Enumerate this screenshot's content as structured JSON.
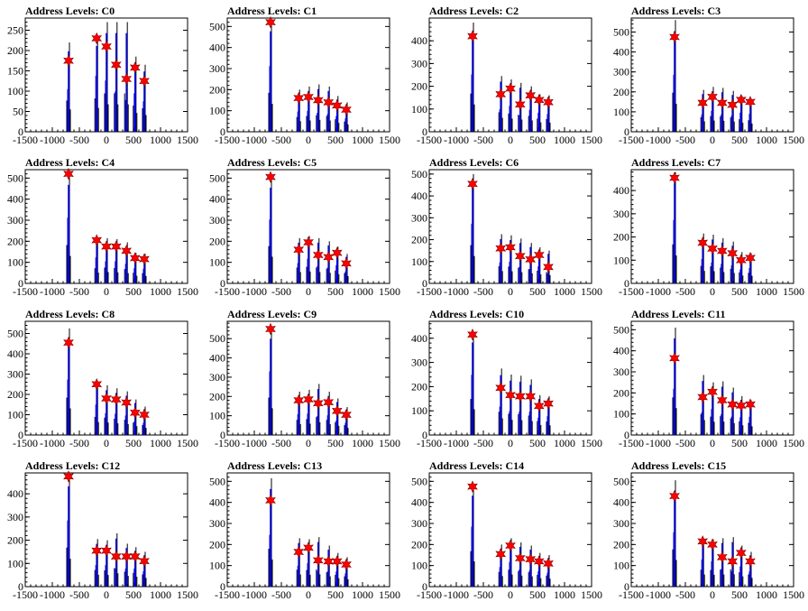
{
  "chart_data": [
    {
      "type": "bar",
      "title": "Address Levels: C0",
      "xlim": [
        -1500,
        1500
      ],
      "ylim": [
        0,
        280
      ],
      "yticks": [
        0,
        50,
        100,
        150,
        200,
        250
      ],
      "xticks": [
        -1500,
        -1000,
        -500,
        0,
        500,
        1000,
        1500
      ],
      "peaks": [
        {
          "x": -700,
          "y": 175,
          "h": 220
        },
        {
          "x": -180,
          "y": 230,
          "h": 235
        },
        {
          "x": 0,
          "y": 210,
          "h": 270
        },
        {
          "x": 180,
          "y": 165,
          "h": 270
        },
        {
          "x": 370,
          "y": 130,
          "h": 270
        },
        {
          "x": 530,
          "y": 158,
          "h": 185
        },
        {
          "x": 700,
          "y": 125,
          "h": 165
        }
      ]
    },
    {
      "type": "bar",
      "title": "Address Levels: C1",
      "xlim": [
        -1500,
        1500
      ],
      "ylim": [
        0,
        540
      ],
      "yticks": [
        0,
        100,
        200,
        300,
        400,
        500
      ],
      "xticks": [
        -1500,
        -1000,
        -500,
        0,
        500,
        1000,
        1500
      ],
      "peaks": [
        {
          "x": -700,
          "y": 520,
          "h": 530
        },
        {
          "x": -180,
          "y": 160,
          "h": 200
        },
        {
          "x": 0,
          "y": 165,
          "h": 215
        },
        {
          "x": 180,
          "y": 150,
          "h": 225
        },
        {
          "x": 370,
          "y": 140,
          "h": 215
        },
        {
          "x": 530,
          "y": 125,
          "h": 170
        },
        {
          "x": 700,
          "y": 105,
          "h": 140
        }
      ]
    },
    {
      "type": "bar",
      "title": "Address Levels: C2",
      "xlim": [
        -1500,
        1500
      ],
      "ylim": [
        0,
        500
      ],
      "yticks": [
        0,
        100,
        200,
        300,
        400
      ],
      "xticks": [
        -1500,
        -1000,
        -500,
        0,
        500,
        1000,
        1500
      ],
      "peaks": [
        {
          "x": -700,
          "y": 420,
          "h": 480
        },
        {
          "x": -180,
          "y": 165,
          "h": 245
        },
        {
          "x": 0,
          "y": 190,
          "h": 230
        },
        {
          "x": 180,
          "y": 120,
          "h": 215
        },
        {
          "x": 370,
          "y": 160,
          "h": 200
        },
        {
          "x": 530,
          "y": 140,
          "h": 165
        },
        {
          "x": 700,
          "y": 130,
          "h": 160
        }
      ]
    },
    {
      "type": "bar",
      "title": "Address Levels: C3",
      "xlim": [
        -1500,
        1500
      ],
      "ylim": [
        0,
        570
      ],
      "yticks": [
        0,
        100,
        200,
        300,
        400,
        500
      ],
      "xticks": [
        -1500,
        -1000,
        -500,
        0,
        500,
        1000,
        1500
      ],
      "peaks": [
        {
          "x": -700,
          "y": 475,
          "h": 560
        },
        {
          "x": -180,
          "y": 145,
          "h": 210
        },
        {
          "x": 0,
          "y": 175,
          "h": 225
        },
        {
          "x": 180,
          "y": 145,
          "h": 220
        },
        {
          "x": 370,
          "y": 135,
          "h": 205
        },
        {
          "x": 530,
          "y": 160,
          "h": 180
        },
        {
          "x": 700,
          "y": 150,
          "h": 165
        }
      ]
    },
    {
      "type": "bar",
      "title": "Address Levels: C4",
      "xlim": [
        -1500,
        1500
      ],
      "ylim": [
        0,
        540
      ],
      "yticks": [
        0,
        100,
        200,
        300,
        400,
        500
      ],
      "xticks": [
        -1500,
        -1000,
        -500,
        0,
        500,
        1000,
        1500
      ],
      "peaks": [
        {
          "x": -700,
          "y": 520,
          "h": 520
        },
        {
          "x": -180,
          "y": 205,
          "h": 205
        },
        {
          "x": 0,
          "y": 175,
          "h": 215
        },
        {
          "x": 180,
          "y": 175,
          "h": 210
        },
        {
          "x": 370,
          "y": 155,
          "h": 195
        },
        {
          "x": 530,
          "y": 120,
          "h": 145
        },
        {
          "x": 700,
          "y": 115,
          "h": 140
        }
      ]
    },
    {
      "type": "bar",
      "title": "Address Levels: C5",
      "xlim": [
        -1500,
        1500
      ],
      "ylim": [
        0,
        540
      ],
      "yticks": [
        0,
        100,
        200,
        300,
        400,
        500
      ],
      "xticks": [
        -1500,
        -1000,
        -500,
        0,
        500,
        1000,
        1500
      ],
      "peaks": [
        {
          "x": -700,
          "y": 505,
          "h": 505
        },
        {
          "x": -180,
          "y": 160,
          "h": 215
        },
        {
          "x": 0,
          "y": 195,
          "h": 225
        },
        {
          "x": 180,
          "y": 135,
          "h": 215
        },
        {
          "x": 370,
          "y": 125,
          "h": 200
        },
        {
          "x": 530,
          "y": 145,
          "h": 175
        },
        {
          "x": 700,
          "y": 95,
          "h": 140
        }
      ]
    },
    {
      "type": "bar",
      "title": "Address Levels: C6",
      "xlim": [
        -1500,
        1500
      ],
      "ylim": [
        0,
        520
      ],
      "yticks": [
        0,
        100,
        200,
        300,
        400,
        500
      ],
      "xticks": [
        -1500,
        -1000,
        -500,
        0,
        500,
        1000,
        1500
      ],
      "peaks": [
        {
          "x": -700,
          "y": 455,
          "h": 500
        },
        {
          "x": -180,
          "y": 160,
          "h": 225
        },
        {
          "x": 0,
          "y": 165,
          "h": 220
        },
        {
          "x": 180,
          "y": 125,
          "h": 205
        },
        {
          "x": 370,
          "y": 110,
          "h": 185
        },
        {
          "x": 530,
          "y": 130,
          "h": 165
        },
        {
          "x": 700,
          "y": 75,
          "h": 150
        }
      ]
    },
    {
      "type": "bar",
      "title": "Address Levels: C7",
      "xlim": [
        -1500,
        1500
      ],
      "ylim": [
        0,
        490
      ],
      "yticks": [
        0,
        100,
        200,
        300,
        400
      ],
      "xticks": [
        -1500,
        -1000,
        -500,
        0,
        500,
        1000,
        1500
      ],
      "peaks": [
        {
          "x": -700,
          "y": 455,
          "h": 480
        },
        {
          "x": -180,
          "y": 175,
          "h": 215
        },
        {
          "x": 0,
          "y": 150,
          "h": 210
        },
        {
          "x": 180,
          "y": 140,
          "h": 195
        },
        {
          "x": 370,
          "y": 130,
          "h": 180
        },
        {
          "x": 530,
          "y": 100,
          "h": 135
        },
        {
          "x": 700,
          "y": 110,
          "h": 130
        }
      ]
    },
    {
      "type": "bar",
      "title": "Address Levels: C8",
      "xlim": [
        -1500,
        1500
      ],
      "ylim": [
        0,
        560
      ],
      "yticks": [
        0,
        100,
        200,
        300,
        400,
        500
      ],
      "xticks": [
        -1500,
        -1000,
        -500,
        0,
        500,
        1000,
        1500
      ],
      "peaks": [
        {
          "x": -700,
          "y": 455,
          "h": 525
        },
        {
          "x": -180,
          "y": 250,
          "h": 255
        },
        {
          "x": 0,
          "y": 180,
          "h": 245
        },
        {
          "x": 180,
          "y": 175,
          "h": 230
        },
        {
          "x": 370,
          "y": 160,
          "h": 215
        },
        {
          "x": 530,
          "y": 110,
          "h": 175
        },
        {
          "x": 700,
          "y": 100,
          "h": 140
        }
      ]
    },
    {
      "type": "bar",
      "title": "Address Levels: C9",
      "xlim": [
        -1500,
        1500
      ],
      "ylim": [
        0,
        590
      ],
      "yticks": [
        0,
        100,
        200,
        300,
        400,
        500
      ],
      "xticks": [
        -1500,
        -1000,
        -500,
        0,
        500,
        1000,
        1500
      ],
      "peaks": [
        {
          "x": -700,
          "y": 550,
          "h": 555
        },
        {
          "x": -180,
          "y": 180,
          "h": 225
        },
        {
          "x": 0,
          "y": 185,
          "h": 235
        },
        {
          "x": 180,
          "y": 165,
          "h": 265
        },
        {
          "x": 370,
          "y": 170,
          "h": 225
        },
        {
          "x": 530,
          "y": 125,
          "h": 190
        },
        {
          "x": 700,
          "y": 105,
          "h": 145
        }
      ]
    },
    {
      "type": "bar",
      "title": "Address Levels: C10",
      "xlim": [
        -1500,
        1500
      ],
      "ylim": [
        0,
        470
      ],
      "yticks": [
        0,
        100,
        200,
        300,
        400
      ],
      "xticks": [
        -1500,
        -1000,
        -500,
        0,
        500,
        1000,
        1500
      ],
      "peaks": [
        {
          "x": -700,
          "y": 415,
          "h": 425
        },
        {
          "x": -180,
          "y": 195,
          "h": 275
        },
        {
          "x": 0,
          "y": 165,
          "h": 250
        },
        {
          "x": 180,
          "y": 160,
          "h": 245
        },
        {
          "x": 370,
          "y": 160,
          "h": 230
        },
        {
          "x": 530,
          "y": 120,
          "h": 165
        },
        {
          "x": 700,
          "y": 130,
          "h": 160
        }
      ]
    },
    {
      "type": "bar",
      "title": "Address Levels: C11",
      "xlim": [
        -1500,
        1500
      ],
      "ylim": [
        0,
        540
      ],
      "yticks": [
        0,
        100,
        200,
        300,
        400,
        500
      ],
      "xticks": [
        -1500,
        -1000,
        -500,
        0,
        500,
        1000,
        1500
      ],
      "peaks": [
        {
          "x": -700,
          "y": 365,
          "h": 510
        },
        {
          "x": -180,
          "y": 180,
          "h": 285
        },
        {
          "x": 0,
          "y": 205,
          "h": 250
        },
        {
          "x": 180,
          "y": 165,
          "h": 255
        },
        {
          "x": 370,
          "y": 145,
          "h": 225
        },
        {
          "x": 530,
          "y": 140,
          "h": 185
        },
        {
          "x": 700,
          "y": 145,
          "h": 165
        }
      ]
    },
    {
      "type": "bar",
      "title": "Address Levels: C12",
      "xlim": [
        -1500,
        1500
      ],
      "ylim": [
        0,
        490
      ],
      "yticks": [
        0,
        100,
        200,
        300,
        400
      ],
      "xticks": [
        -1500,
        -1000,
        -500,
        0,
        500,
        1000,
        1500
      ],
      "peaks": [
        {
          "x": -700,
          "y": 475,
          "h": 480
        },
        {
          "x": -180,
          "y": 155,
          "h": 205
        },
        {
          "x": 0,
          "y": 155,
          "h": 200
        },
        {
          "x": 180,
          "y": 130,
          "h": 230
        },
        {
          "x": 370,
          "y": 130,
          "h": 185
        },
        {
          "x": 530,
          "y": 130,
          "h": 170
        },
        {
          "x": 700,
          "y": 110,
          "h": 150
        }
      ]
    },
    {
      "type": "bar",
      "title": "Address Levels: C13",
      "xlim": [
        -1500,
        1500
      ],
      "ylim": [
        0,
        540
      ],
      "yticks": [
        0,
        100,
        200,
        300,
        400,
        500
      ],
      "xticks": [
        -1500,
        -1000,
        -500,
        0,
        500,
        1000,
        1500
      ],
      "peaks": [
        {
          "x": -700,
          "y": 410,
          "h": 515
        },
        {
          "x": -180,
          "y": 165,
          "h": 230
        },
        {
          "x": 0,
          "y": 185,
          "h": 225
        },
        {
          "x": 180,
          "y": 125,
          "h": 235
        },
        {
          "x": 370,
          "y": 120,
          "h": 195
        },
        {
          "x": 530,
          "y": 120,
          "h": 160
        },
        {
          "x": 700,
          "y": 105,
          "h": 140
        }
      ]
    },
    {
      "type": "bar",
      "title": "Address Levels: C14",
      "xlim": [
        -1500,
        1500
      ],
      "ylim": [
        0,
        540
      ],
      "yticks": [
        0,
        100,
        200,
        300,
        400,
        500
      ],
      "xticks": [
        -1500,
        -1000,
        -500,
        0,
        500,
        1000,
        1500
      ],
      "peaks": [
        {
          "x": -700,
          "y": 475,
          "h": 480
        },
        {
          "x": -180,
          "y": 155,
          "h": 200
        },
        {
          "x": 0,
          "y": 195,
          "h": 230
        },
        {
          "x": 180,
          "y": 135,
          "h": 210
        },
        {
          "x": 370,
          "y": 130,
          "h": 195
        },
        {
          "x": 530,
          "y": 120,
          "h": 160
        },
        {
          "x": 700,
          "y": 110,
          "h": 150
        }
      ]
    },
    {
      "type": "bar",
      "title": "Address Levels: C15",
      "xlim": [
        -1500,
        1500
      ],
      "ylim": [
        0,
        540
      ],
      "yticks": [
        0,
        100,
        200,
        300,
        400,
        500
      ],
      "xticks": [
        -1500,
        -1000,
        -500,
        0,
        500,
        1000,
        1500
      ],
      "peaks": [
        {
          "x": -700,
          "y": 430,
          "h": 505
        },
        {
          "x": -180,
          "y": 215,
          "h": 230
        },
        {
          "x": 0,
          "y": 200,
          "h": 225
        },
        {
          "x": 180,
          "y": 140,
          "h": 230
        },
        {
          "x": 370,
          "y": 120,
          "h": 235
        },
        {
          "x": 530,
          "y": 160,
          "h": 195
        },
        {
          "x": 700,
          "y": 120,
          "h": 165
        }
      ]
    }
  ],
  "colors": {
    "bars": "#0000ff",
    "secondary_bars": "#000000",
    "markers": "#ff0000",
    "marker_outline": "#800000",
    "axes": "#000000"
  },
  "marker_symbol": "star"
}
